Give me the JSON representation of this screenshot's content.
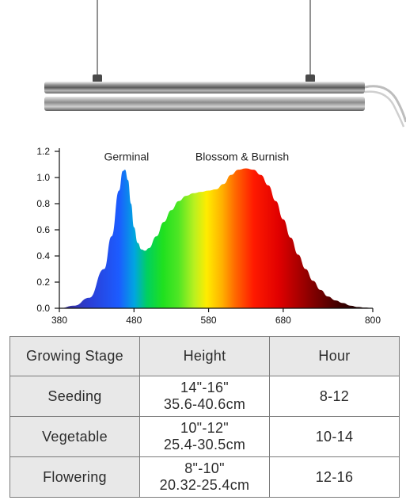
{
  "product": {
    "icon": "led-grow-light-bar"
  },
  "chart_data": {
    "type": "area",
    "title": "",
    "xlabel": "",
    "ylabel": "",
    "xlim": [
      380,
      800
    ],
    "ylim": [
      0,
      1.2
    ],
    "x_ticks": [
      380,
      480,
      580,
      680,
      800
    ],
    "y_ticks": [
      "0.0",
      "0.2",
      "0.4",
      "0.6",
      "0.8",
      "1.0",
      "1.2"
    ],
    "fill": "visible-spectrum gradient",
    "annotations": [
      {
        "text": "Germinal",
        "x": 470,
        "y": 1.16
      },
      {
        "text": "Blossom & Burnish",
        "x": 625,
        "y": 1.16
      }
    ],
    "series": [
      {
        "x": [
          380,
          400,
          420,
          440,
          450,
          460,
          465,
          468,
          472,
          476,
          480,
          485,
          490,
          495,
          500,
          510,
          520,
          530,
          540,
          550,
          560,
          570,
          580,
          590,
          600,
          610,
          620,
          630,
          640,
          650,
          660,
          670,
          680,
          690,
          700,
          710,
          720,
          730,
          740,
          750,
          760,
          770,
          780,
          790,
          800
        ],
        "y": [
          0.0,
          0.02,
          0.08,
          0.3,
          0.55,
          0.9,
          1.05,
          1.06,
          0.98,
          0.8,
          0.62,
          0.5,
          0.45,
          0.44,
          0.46,
          0.55,
          0.66,
          0.75,
          0.82,
          0.86,
          0.88,
          0.89,
          0.9,
          0.91,
          0.95,
          1.02,
          1.06,
          1.07,
          1.06,
          1.02,
          0.94,
          0.82,
          0.68,
          0.54,
          0.41,
          0.3,
          0.21,
          0.14,
          0.09,
          0.06,
          0.04,
          0.02,
          0.01,
          0.005,
          0.0
        ]
      }
    ]
  },
  "table": {
    "headers": [
      "Growing Stage",
      "Height",
      "Hour"
    ],
    "rows": [
      {
        "stage": "Seeding",
        "height_in": "14\"-16\"",
        "height_cm": "35.6-40.6cm",
        "hour": "8-12"
      },
      {
        "stage": "Vegetable",
        "height_in": "10\"-12\"",
        "height_cm": "25.4-30.5cm",
        "hour": "10-14"
      },
      {
        "stage": "Flowering",
        "height_in": "8\"-10\"",
        "height_cm": "20.32-25.4cm",
        "hour": "12-16"
      }
    ]
  }
}
